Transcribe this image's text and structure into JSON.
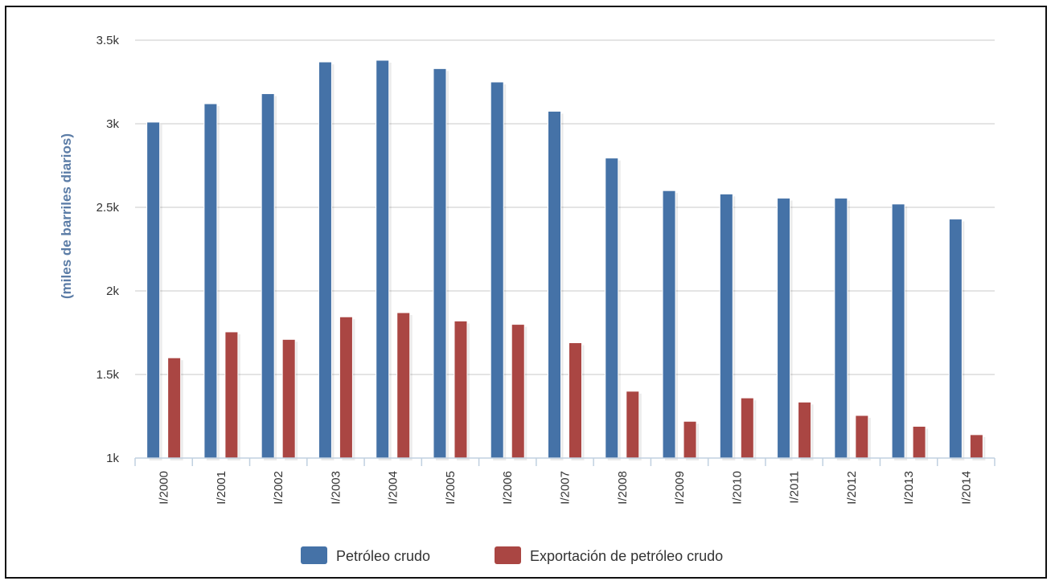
{
  "chart_data": {
    "type": "bar",
    "title": "",
    "xlabel": "",
    "ylabel": "(miles de barriles diarios)",
    "ylim": [
      1000,
      3500
    ],
    "y_ticks": [
      {
        "value": 1000,
        "label": "1k"
      },
      {
        "value": 1500,
        "label": "1.5k"
      },
      {
        "value": 2000,
        "label": "2k"
      },
      {
        "value": 2500,
        "label": "2.5k"
      },
      {
        "value": 3000,
        "label": "3k"
      },
      {
        "value": 3500,
        "label": "3.5k"
      }
    ],
    "categories": [
      "I/2000",
      "I/2001",
      "I/2002",
      "I/2003",
      "I/2004",
      "I/2005",
      "I/2006",
      "I/2007",
      "I/2008",
      "I/2009",
      "I/2010",
      "I/2011",
      "I/2012",
      "I/2013",
      "I/2014"
    ],
    "series": [
      {
        "name": "Petróleo crudo",
        "color": "#4572a7",
        "values": [
          3010,
          3120,
          3180,
          3370,
          3380,
          3330,
          3250,
          3075,
          2795,
          2600,
          2580,
          2555,
          2555,
          2520,
          2430
        ]
      },
      {
        "name": "Exportación de petróleo crudo",
        "color": "#aa4643",
        "values": [
          1600,
          1755,
          1710,
          1845,
          1870,
          1820,
          1800,
          1690,
          1400,
          1220,
          1360,
          1335,
          1255,
          1190,
          1140
        ]
      }
    ],
    "grid": true,
    "legend_position": "bottom-center"
  }
}
